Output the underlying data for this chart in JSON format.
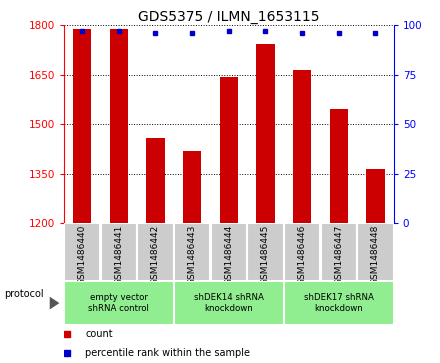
{
  "title": "GDS5375 / ILMN_1653115",
  "categories": [
    "GSM1486440",
    "GSM1486441",
    "GSM1486442",
    "GSM1486443",
    "GSM1486444",
    "GSM1486445",
    "GSM1486446",
    "GSM1486447",
    "GSM1486448"
  ],
  "counts": [
    1790,
    1790,
    1460,
    1420,
    1645,
    1745,
    1665,
    1545,
    1365
  ],
  "percentile_ranks": [
    97,
    97,
    96,
    96,
    97,
    97,
    96,
    96,
    96
  ],
  "bar_color": "#cc0000",
  "dot_color": "#0000cc",
  "ylim_left": [
    1200,
    1800
  ],
  "ylim_right": [
    0,
    100
  ],
  "yticks_left": [
    1200,
    1350,
    1500,
    1650,
    1800
  ],
  "yticks_right": [
    0,
    25,
    50,
    75,
    100
  ],
  "group_starts": [
    0,
    3,
    6
  ],
  "group_ends": [
    3,
    6,
    9
  ],
  "group_labels": [
    "empty vector\nshRNA control",
    "shDEK14 shRNA\nknockdown",
    "shDEK17 shRNA\nknockdown"
  ],
  "group_colors": [
    "#90ee90",
    "#90ee90",
    "#90ee90"
  ],
  "legend_count_label": "count",
  "legend_pct_label": "percentile rank within the sample",
  "legend_count_color": "#cc0000",
  "legend_pct_color": "#0000cc",
  "protocol_label": "protocol",
  "title_fontsize": 10,
  "tick_fontsize": 7.5,
  "bar_width": 0.5,
  "cell_bg_color": "#cccccc",
  "cell_border_color": "white"
}
